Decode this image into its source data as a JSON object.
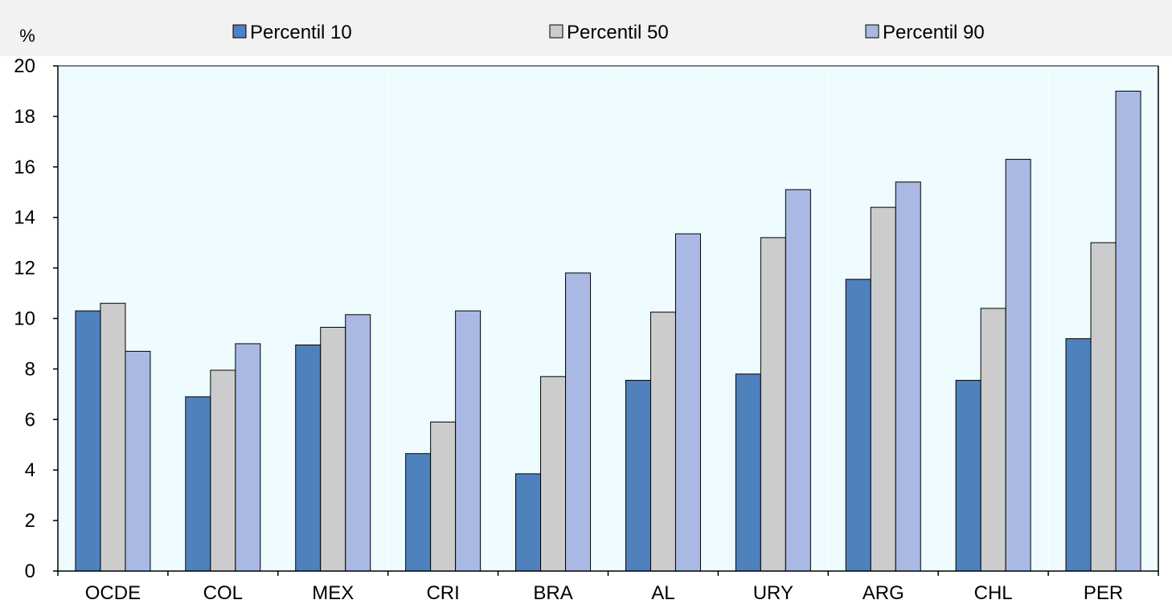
{
  "chart_data": {
    "type": "bar",
    "title": "",
    "xlabel": "",
    "ylabel": "%",
    "ylim": [
      0,
      20
    ],
    "yticks": [
      "0",
      "2",
      "4",
      "6",
      "8",
      "10",
      "12",
      "14",
      "16",
      "18",
      "20"
    ],
    "grid": false,
    "legend_position": "top",
    "categories": [
      "OCDE",
      "COL",
      "MEX",
      "CRI",
      "BRA",
      "AL",
      "URY",
      "ARG",
      "CHL",
      "PER"
    ],
    "series": [
      {
        "name": "Percentil 10",
        "color": "#4f81bd",
        "values": [
          10.3,
          6.9,
          8.95,
          4.65,
          3.85,
          7.55,
          7.8,
          11.55,
          7.55,
          9.2
        ]
      },
      {
        "name": "Percentil 50",
        "color": "#cccccc",
        "values": [
          10.6,
          7.95,
          9.65,
          5.9,
          7.7,
          10.25,
          13.2,
          14.4,
          10.4,
          13.0
        ]
      },
      {
        "name": "Percentil 90",
        "color": "#a9b9e3",
        "values": [
          8.7,
          9.0,
          10.15,
          10.3,
          11.8,
          13.35,
          15.1,
          15.4,
          16.3,
          19.0
        ]
      }
    ],
    "colors": {
      "plot_background": "#eefbff",
      "legend_band": "#f2f2f2",
      "bar_outline": "#000000",
      "axis": "#000000"
    }
  }
}
